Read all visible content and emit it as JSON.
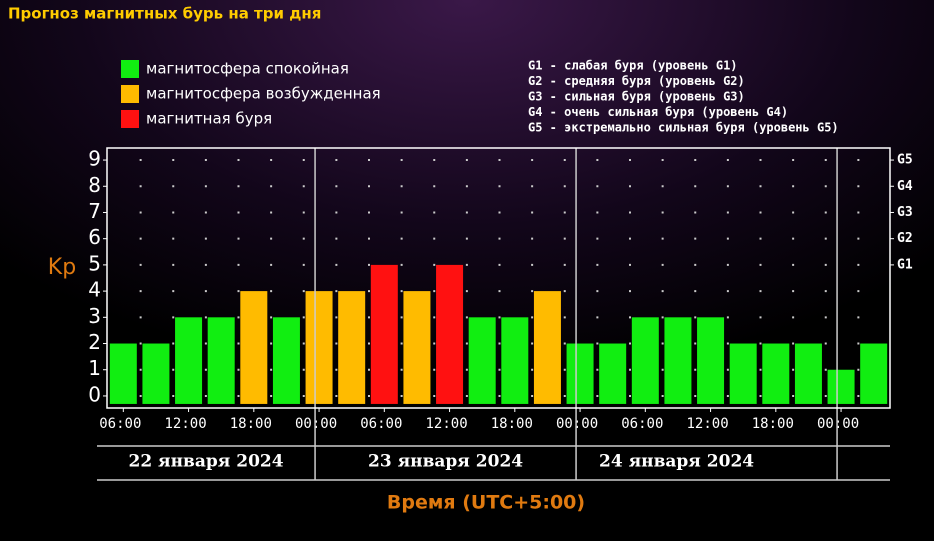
{
  "chart_data": {
    "type": "bar",
    "title": "Прогноз магнитных бурь на три дня",
    "legend": [
      {
        "label": "магнитосфера спокойная",
        "color": "#11ee11"
      },
      {
        "label": "магнитосфера возбужденная",
        "color": "#ffbb00"
      },
      {
        "label": "магнитная буря",
        "color": "#ff1111"
      }
    ],
    "storm_levels": [
      "G1 - слабая буря (уровень G1)",
      "G2 - средняя буря (уровень G2)",
      "G3 - сильная буря (уровень G3)",
      "G4 - очень сильная буря (уровень G4)",
      "G5 - экстремально сильная буря (уровень G5)"
    ],
    "ylabel": "Kp",
    "xlabel": "Время (UTC+5:00)",
    "categories": [
      "06:00",
      null,
      "12:00",
      null,
      "18:00",
      null,
      "00:00",
      null,
      "06:00",
      null,
      "12:00",
      null,
      "18:00",
      null,
      "00:00",
      null,
      "06:00",
      null,
      "12:00",
      null,
      "18:00",
      null,
      "00:00",
      null
    ],
    "values": [
      2,
      2,
      3,
      3,
      4,
      3,
      4,
      4,
      5,
      4,
      5,
      3,
      3,
      4,
      2,
      2,
      3,
      3,
      3,
      2,
      2,
      2,
      1,
      2
    ],
    "colors": [
      "#11ee11",
      "#11ee11",
      "#11ee11",
      "#11ee11",
      "#ffbb00",
      "#11ee11",
      "#ffbb00",
      "#ffbb00",
      "#ff1111",
      "#ffbb00",
      "#ff1111",
      "#11ee11",
      "#11ee11",
      "#ffbb00",
      "#11ee11",
      "#11ee11",
      "#11ee11",
      "#11ee11",
      "#11ee11",
      "#11ee11",
      "#11ee11",
      "#11ee11",
      "#11ee11",
      "#11ee11"
    ],
    "days": [
      "22 января 2024",
      "23 января 2024",
      "24 января 2024"
    ],
    "ylim": [
      -0.46,
      9.46
    ],
    "yticks": [
      0,
      1,
      2,
      3,
      4,
      5,
      6,
      7,
      8,
      9
    ],
    "y2ticks": [
      {
        "value": 5,
        "label": "G1"
      },
      {
        "value": 6,
        "label": "G2"
      },
      {
        "value": 7,
        "label": "G3"
      },
      {
        "value": 8,
        "label": "G4"
      },
      {
        "value": 9,
        "label": "G5"
      }
    ],
    "grid": true
  }
}
